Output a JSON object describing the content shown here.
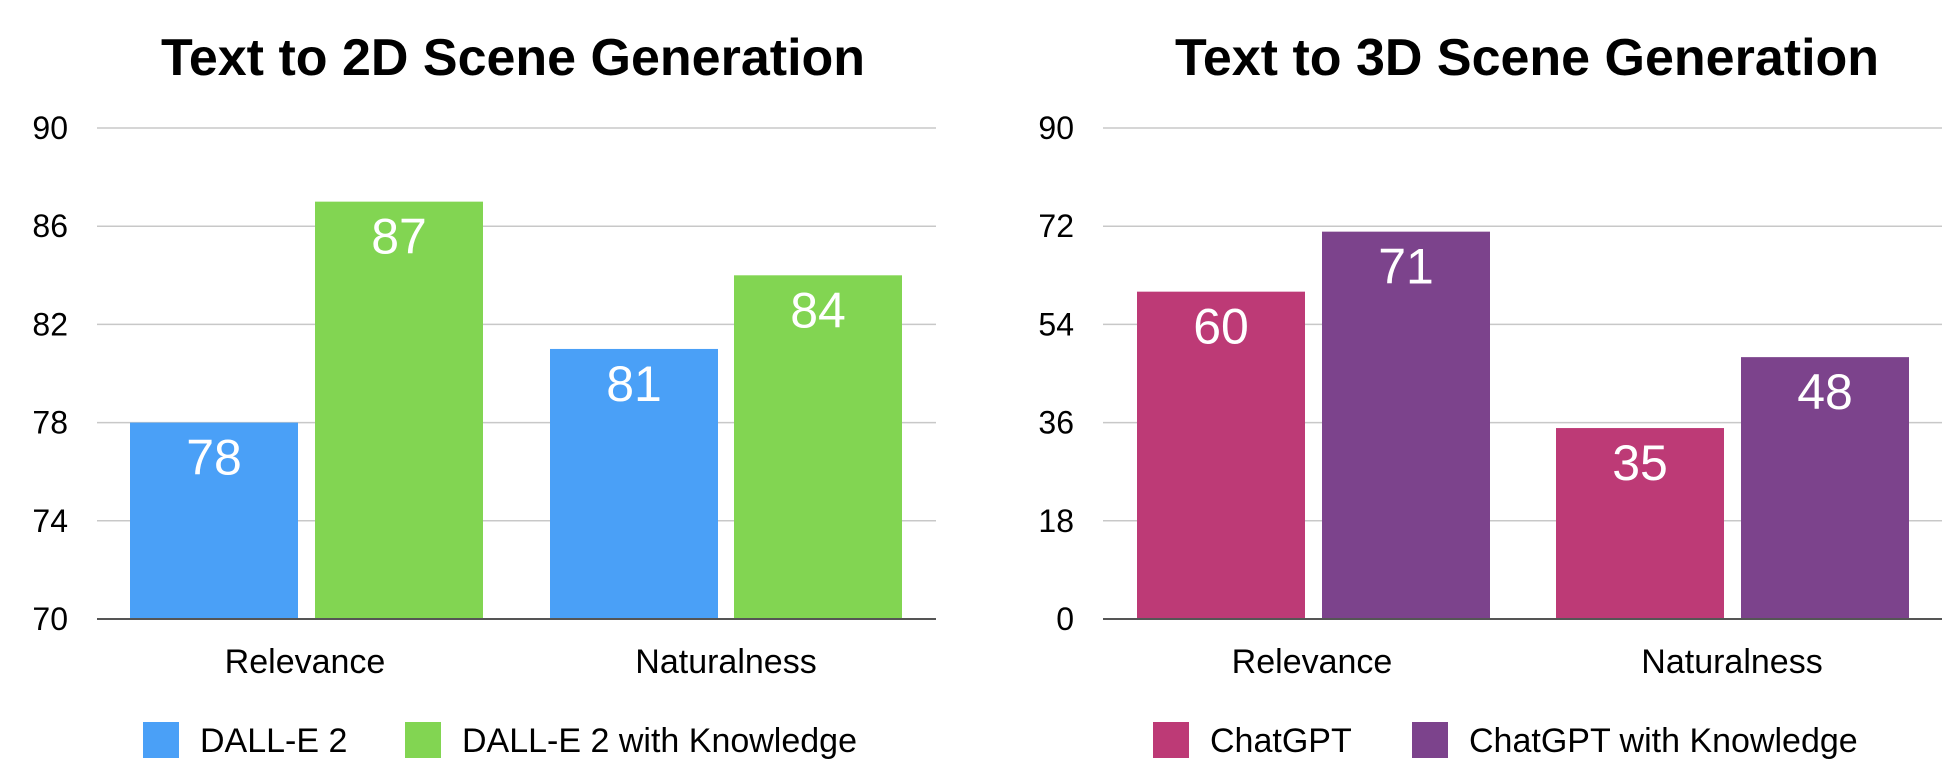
{
  "chart_data": [
    {
      "type": "bar",
      "title": "Text to 2D Scene Generation",
      "categories": [
        "Relevance",
        "Naturalness"
      ],
      "series": [
        {
          "name": "DALL-E 2",
          "values": [
            78,
            81
          ],
          "color": "#4aa0f7"
        },
        {
          "name": "DALL-E 2 with Knowledge",
          "values": [
            87,
            84
          ],
          "color": "#82d552"
        }
      ],
      "yticks": [
        "90",
        "86",
        "82",
        "78",
        "74",
        "70"
      ],
      "ylim": [
        70,
        90
      ],
      "data_labels": true,
      "grid": true,
      "legend": "bottom"
    },
    {
      "type": "bar",
      "title": "Text to 3D Scene Generation",
      "categories": [
        "Relevance",
        "Naturalness"
      ],
      "series": [
        {
          "name": "ChatGPT",
          "values": [
            60,
            35
          ],
          "color": "#bd3a76"
        },
        {
          "name": "ChatGPT with Knowledge",
          "values": [
            71,
            48
          ],
          "color": "#7c438c"
        }
      ],
      "yticks": [
        "90",
        "72",
        "54",
        "36",
        "18",
        "0"
      ],
      "ylim": [
        0,
        90
      ],
      "data_labels": true,
      "grid": true,
      "legend": "bottom"
    }
  ]
}
